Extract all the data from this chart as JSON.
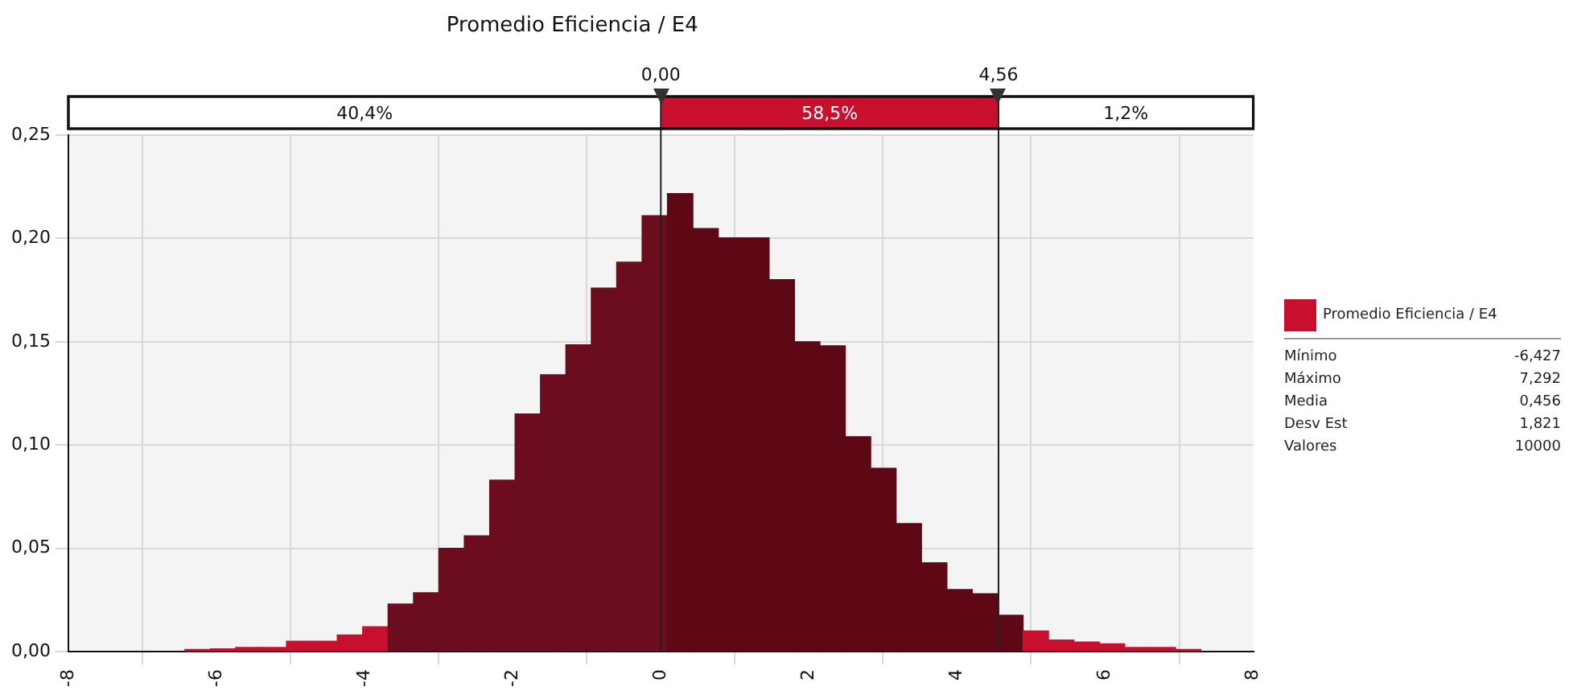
{
  "chart_data": {
    "type": "histogram",
    "title": "Promedio Eficiencia / E4",
    "bins": [
      -6.427,
      -6.084,
      -5.741,
      -5.398,
      -5.055,
      -4.712,
      -4.369,
      -4.026,
      -3.683,
      -3.34,
      -2.997,
      -2.654,
      -2.311,
      -1.968,
      -1.625,
      -1.282,
      -0.939,
      -0.596,
      -0.253,
      0.09,
      0.433,
      0.776,
      1.119,
      1.462,
      1.805,
      2.148,
      2.491,
      2.834,
      3.177,
      3.52,
      3.863,
      4.206,
      4.549,
      4.892,
      5.235,
      5.578,
      5.921,
      6.264,
      6.607,
      6.95,
      7.292
    ],
    "series": [
      {
        "name": "Promedio Eficiencia / E4",
        "color": "#c8102e",
        "values": [
          0.001,
          0.0013,
          0.002,
          0.002,
          0.005,
          0.005,
          0.008,
          0.012,
          0.023,
          0.0285,
          0.05,
          0.056,
          0.083,
          0.115,
          0.134,
          0.1485,
          0.176,
          0.1885,
          0.211,
          0.2217,
          0.2048,
          0.2003,
          0.2003,
          0.18,
          0.15,
          0.148,
          0.104,
          0.0887,
          0.062,
          0.043,
          0.03,
          0.028,
          0.0176,
          0.01,
          0.0056,
          0.0046,
          0.0038,
          0.002,
          0.002,
          0.001
        ],
        "colors": [
          "#c8102e",
          "#c8102e",
          "#c8102e",
          "#c8102e",
          "#c8102e",
          "#c8102e",
          "#c8102e",
          "#c8102e",
          "#6b0d1f",
          "#6b0d1f",
          "#6b0d1f",
          "#6b0d1f",
          "#6b0d1f",
          "#6b0d1f",
          "#6b0d1f",
          "#6b0d1f",
          "#6b0d1f",
          "#6b0d1f",
          "#6b0d1f",
          "#5e0715",
          "#5e0715",
          "#5e0715",
          "#5e0715",
          "#5e0715",
          "#5e0715",
          "#5e0715",
          "#5e0715",
          "#5e0715",
          "#5e0715",
          "#5e0715",
          "#5e0715",
          "#5e0715",
          "#5e0715",
          "#c8102e",
          "#c8102e",
          "#c8102e",
          "#c8102e",
          "#c8102e",
          "#c8102e",
          "#c8102e"
        ]
      }
    ],
    "xlim": [
      -8,
      8
    ],
    "xticks": [
      -8,
      -6,
      -4,
      -2,
      0,
      2,
      4,
      6,
      8
    ],
    "ylim": [
      0,
      0.25
    ],
    "yticks": [
      {
        "value": 0,
        "label": "0,00"
      },
      {
        "value": 0.05,
        "label": "0,05"
      },
      {
        "value": 0.1,
        "label": "0,10"
      },
      {
        "value": 0.15,
        "label": "0,15"
      },
      {
        "value": 0.2,
        "label": "0,20"
      },
      {
        "value": 0.25,
        "label": "0,25"
      }
    ],
    "ref_lines": [
      {
        "axis": "x",
        "value": 0,
        "label": "0,00",
        "color": "#222222"
      },
      {
        "axis": "x",
        "value": 4.56,
        "label": "4,56",
        "color": "#222222"
      }
    ],
    "annotations": [
      "40,4%",
      "58,5%",
      "1,2%",
      "Mínimo -6,427",
      "Máximo 7,292",
      "Media 0,456",
      "Desv Est 1,821",
      "Valores 10000"
    ],
    "grid": true,
    "legend": "right"
  }
}
